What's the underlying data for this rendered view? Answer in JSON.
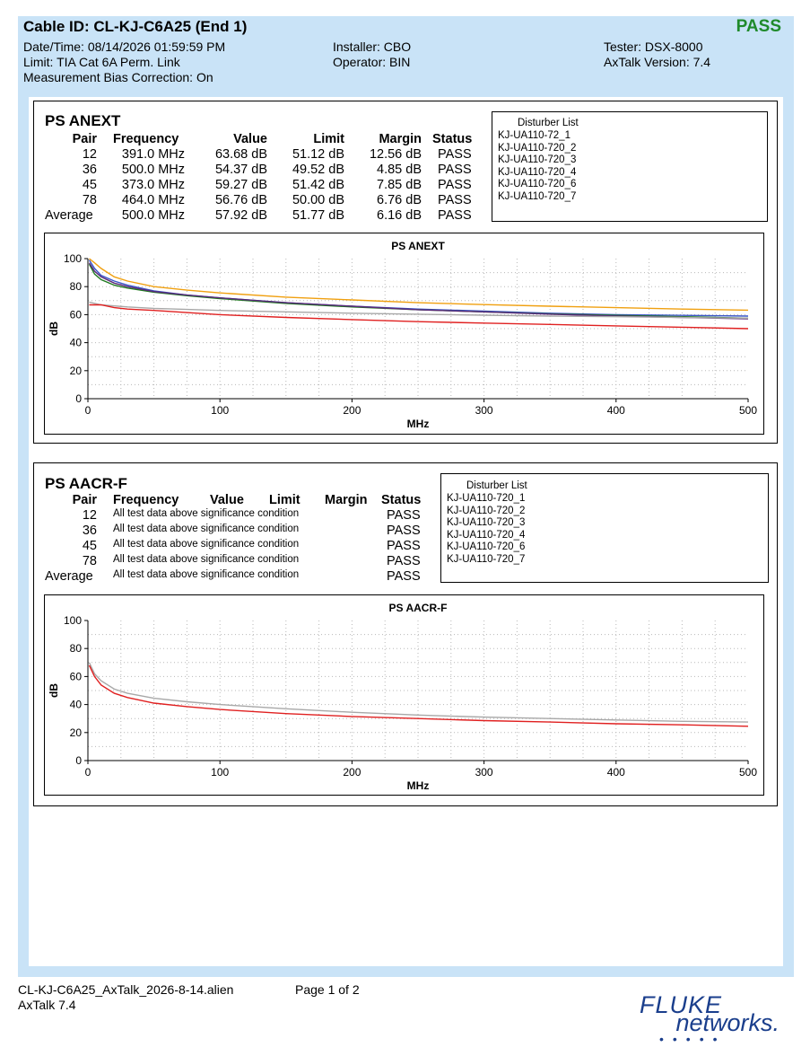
{
  "header": {
    "title": "Cable ID: CL-KJ-C6A25 (End 1)",
    "overall_result": "PASS",
    "result_color": "#1f8a2b",
    "datetime": "Date/Time: 08/14/2026  01:59:59 PM",
    "limit": "Limit: TIA Cat 6A Perm. Link",
    "bias": "Measurement Bias Correction: On",
    "installer": "Installer: CBO",
    "operator": "Operator: BIN",
    "tester": "Tester: DSX-8000",
    "version": "AxTalk Version: 7.4"
  },
  "anext": {
    "title": "PS ANEXT",
    "headers": {
      "pair": "Pair",
      "frequency": "Frequency",
      "value": "Value",
      "limit": "Limit",
      "margin": "Margin",
      "status": "Status"
    },
    "rows": [
      {
        "pair": "12",
        "frequency": "391.0 MHz",
        "value": "63.68 dB",
        "limit": "51.12 dB",
        "margin": "12.56 dB",
        "status": "PASS"
      },
      {
        "pair": "36",
        "frequency": "500.0 MHz",
        "value": "54.37 dB",
        "limit": "49.52 dB",
        "margin": "4.85 dB",
        "status": "PASS"
      },
      {
        "pair": "45",
        "frequency": "373.0 MHz",
        "value": "59.27 dB",
        "limit": "51.42 dB",
        "margin": "7.85 dB",
        "status": "PASS"
      },
      {
        "pair": "78",
        "frequency": "464.0 MHz",
        "value": "56.76 dB",
        "limit": "50.00 dB",
        "margin": "6.76 dB",
        "status": "PASS"
      },
      {
        "pair": "Average",
        "frequency": "500.0 MHz",
        "value": "57.92 dB",
        "limit": "51.77 dB",
        "margin": "6.16 dB",
        "status": "PASS"
      }
    ],
    "disturber_title": "Disturber List",
    "disturbers": [
      "KJ-UA110-72_1",
      "KJ-UA110-720_2",
      "KJ-UA110-720_3",
      "KJ-UA110-720_4",
      "KJ-UA110-720_6",
      "KJ-UA110-720_7"
    ]
  },
  "aacrf": {
    "title": "PS AACR-F",
    "headers": {
      "pair": "Pair",
      "frequency": "Frequency",
      "value": "Value",
      "limit": "Limit",
      "margin": "Margin",
      "status": "Status"
    },
    "rows": [
      {
        "pair": "12",
        "note": "All test data above significance condition",
        "status": "PASS"
      },
      {
        "pair": "36",
        "note": "All test data above significance condition",
        "status": "PASS"
      },
      {
        "pair": "45",
        "note": "All test data above significance condition",
        "status": "PASS"
      },
      {
        "pair": "78",
        "note": "All test data above significance condition",
        "status": "PASS"
      },
      {
        "pair": "Average",
        "note": "All test data above significance condition",
        "status": "PASS"
      }
    ],
    "disturber_title": "Disturber List",
    "disturbers": [
      "KJ-UA110-720_1",
      "KJ-UA110-720_2",
      "KJ-UA110-720_3",
      "KJ-UA110-720_4",
      "KJ-UA110-720_6",
      "KJ-UA110-720_7"
    ]
  },
  "chart_data": [
    {
      "type": "line",
      "title": "PS ANEXT",
      "xlabel": "MHz",
      "ylabel": "dB",
      "xlim": [
        0,
        500
      ],
      "ylim": [
        0,
        100
      ],
      "xticks": [
        0,
        100,
        200,
        300,
        400,
        500
      ],
      "yticks": [
        0,
        20,
        40,
        60,
        80,
        100
      ],
      "grid": true,
      "series": [
        {
          "color": "#f0a010",
          "x": [
            1,
            5,
            10,
            20,
            30,
            50,
            75,
            100,
            150,
            200,
            250,
            300,
            350,
            400,
            450,
            500
          ],
          "y": [
            100,
            97,
            93,
            87,
            84,
            80,
            77.5,
            75.5,
            72.5,
            70.5,
            68.5,
            67.2,
            66,
            65,
            64,
            63.2
          ]
        },
        {
          "color": "#3a56c8",
          "x": [
            1,
            5,
            10,
            20,
            30,
            50,
            75,
            100,
            150,
            200,
            250,
            300,
            350,
            400,
            450,
            500
          ],
          "y": [
            99,
            93,
            88,
            84,
            81,
            77,
            74,
            72,
            68.5,
            66,
            64,
            62.5,
            61,
            60,
            59.5,
            59
          ]
        },
        {
          "color": "#1f7a1f",
          "x": [
            1,
            5,
            10,
            20,
            30,
            50,
            75,
            100,
            150,
            200,
            250,
            300,
            350,
            400,
            450,
            500
          ],
          "y": [
            96,
            89,
            85,
            81,
            79,
            76,
            73.5,
            71.5,
            68,
            65.5,
            63.5,
            62,
            60.5,
            59.5,
            58.5,
            57.5
          ]
        },
        {
          "color": "#5a2a7a",
          "x": [
            1,
            5,
            10,
            20,
            30,
            50,
            75,
            100,
            150,
            200,
            250,
            300,
            350,
            400,
            450,
            500
          ],
          "y": [
            97,
            91,
            87,
            82.5,
            80,
            76.5,
            74,
            72,
            68.5,
            66,
            63.5,
            62,
            60.3,
            59,
            58,
            57
          ]
        },
        {
          "color": "#a8a8a8",
          "x": [
            1,
            10,
            30,
            50,
            100,
            150,
            200,
            250,
            300,
            350,
            400,
            450,
            500
          ],
          "y": [
            69,
            67,
            65.5,
            64.5,
            63,
            62,
            61,
            60.3,
            59.6,
            59,
            58.5,
            58,
            57.5
          ]
        },
        {
          "color": "#e02020",
          "x": [
            1,
            10,
            20,
            30,
            50,
            100,
            150,
            200,
            250,
            300,
            350,
            400,
            450,
            500
          ],
          "y": [
            67,
            67,
            65,
            64,
            63,
            60,
            58,
            56.5,
            55,
            54,
            53,
            52,
            51,
            50
          ]
        }
      ]
    },
    {
      "type": "line",
      "title": "PS AACR-F",
      "xlabel": "MHz",
      "ylabel": "dB",
      "xlim": [
        0,
        500
      ],
      "ylim": [
        0,
        100
      ],
      "xticks": [
        0,
        100,
        200,
        300,
        400,
        500
      ],
      "yticks": [
        0,
        20,
        40,
        60,
        80,
        100
      ],
      "grid": true,
      "series": [
        {
          "color": "#a8a8a8",
          "x": [
            1,
            5,
            10,
            20,
            30,
            50,
            75,
            100,
            150,
            200,
            250,
            300,
            350,
            400,
            450,
            500
          ],
          "y": [
            70,
            62,
            57,
            51,
            48,
            44.5,
            42,
            40,
            37,
            34.5,
            32.5,
            31,
            30,
            29,
            28,
            27.5
          ]
        },
        {
          "color": "#e02020",
          "x": [
            1,
            5,
            10,
            20,
            30,
            50,
            75,
            100,
            150,
            200,
            250,
            300,
            350,
            400,
            450,
            500
          ],
          "y": [
            68,
            60,
            54,
            48,
            45,
            41,
            38.5,
            36.5,
            33.5,
            31.5,
            30,
            28.5,
            27.5,
            26.3,
            25.5,
            24.5
          ]
        }
      ]
    }
  ],
  "footer": {
    "file": "CL-KJ-C6A25_AxTalk_2026-8-14.alien",
    "page": "Page 1 of 2",
    "app": "AxTalk 7.4",
    "logo_top": "FLUKE",
    "logo_bottom": "networks."
  }
}
